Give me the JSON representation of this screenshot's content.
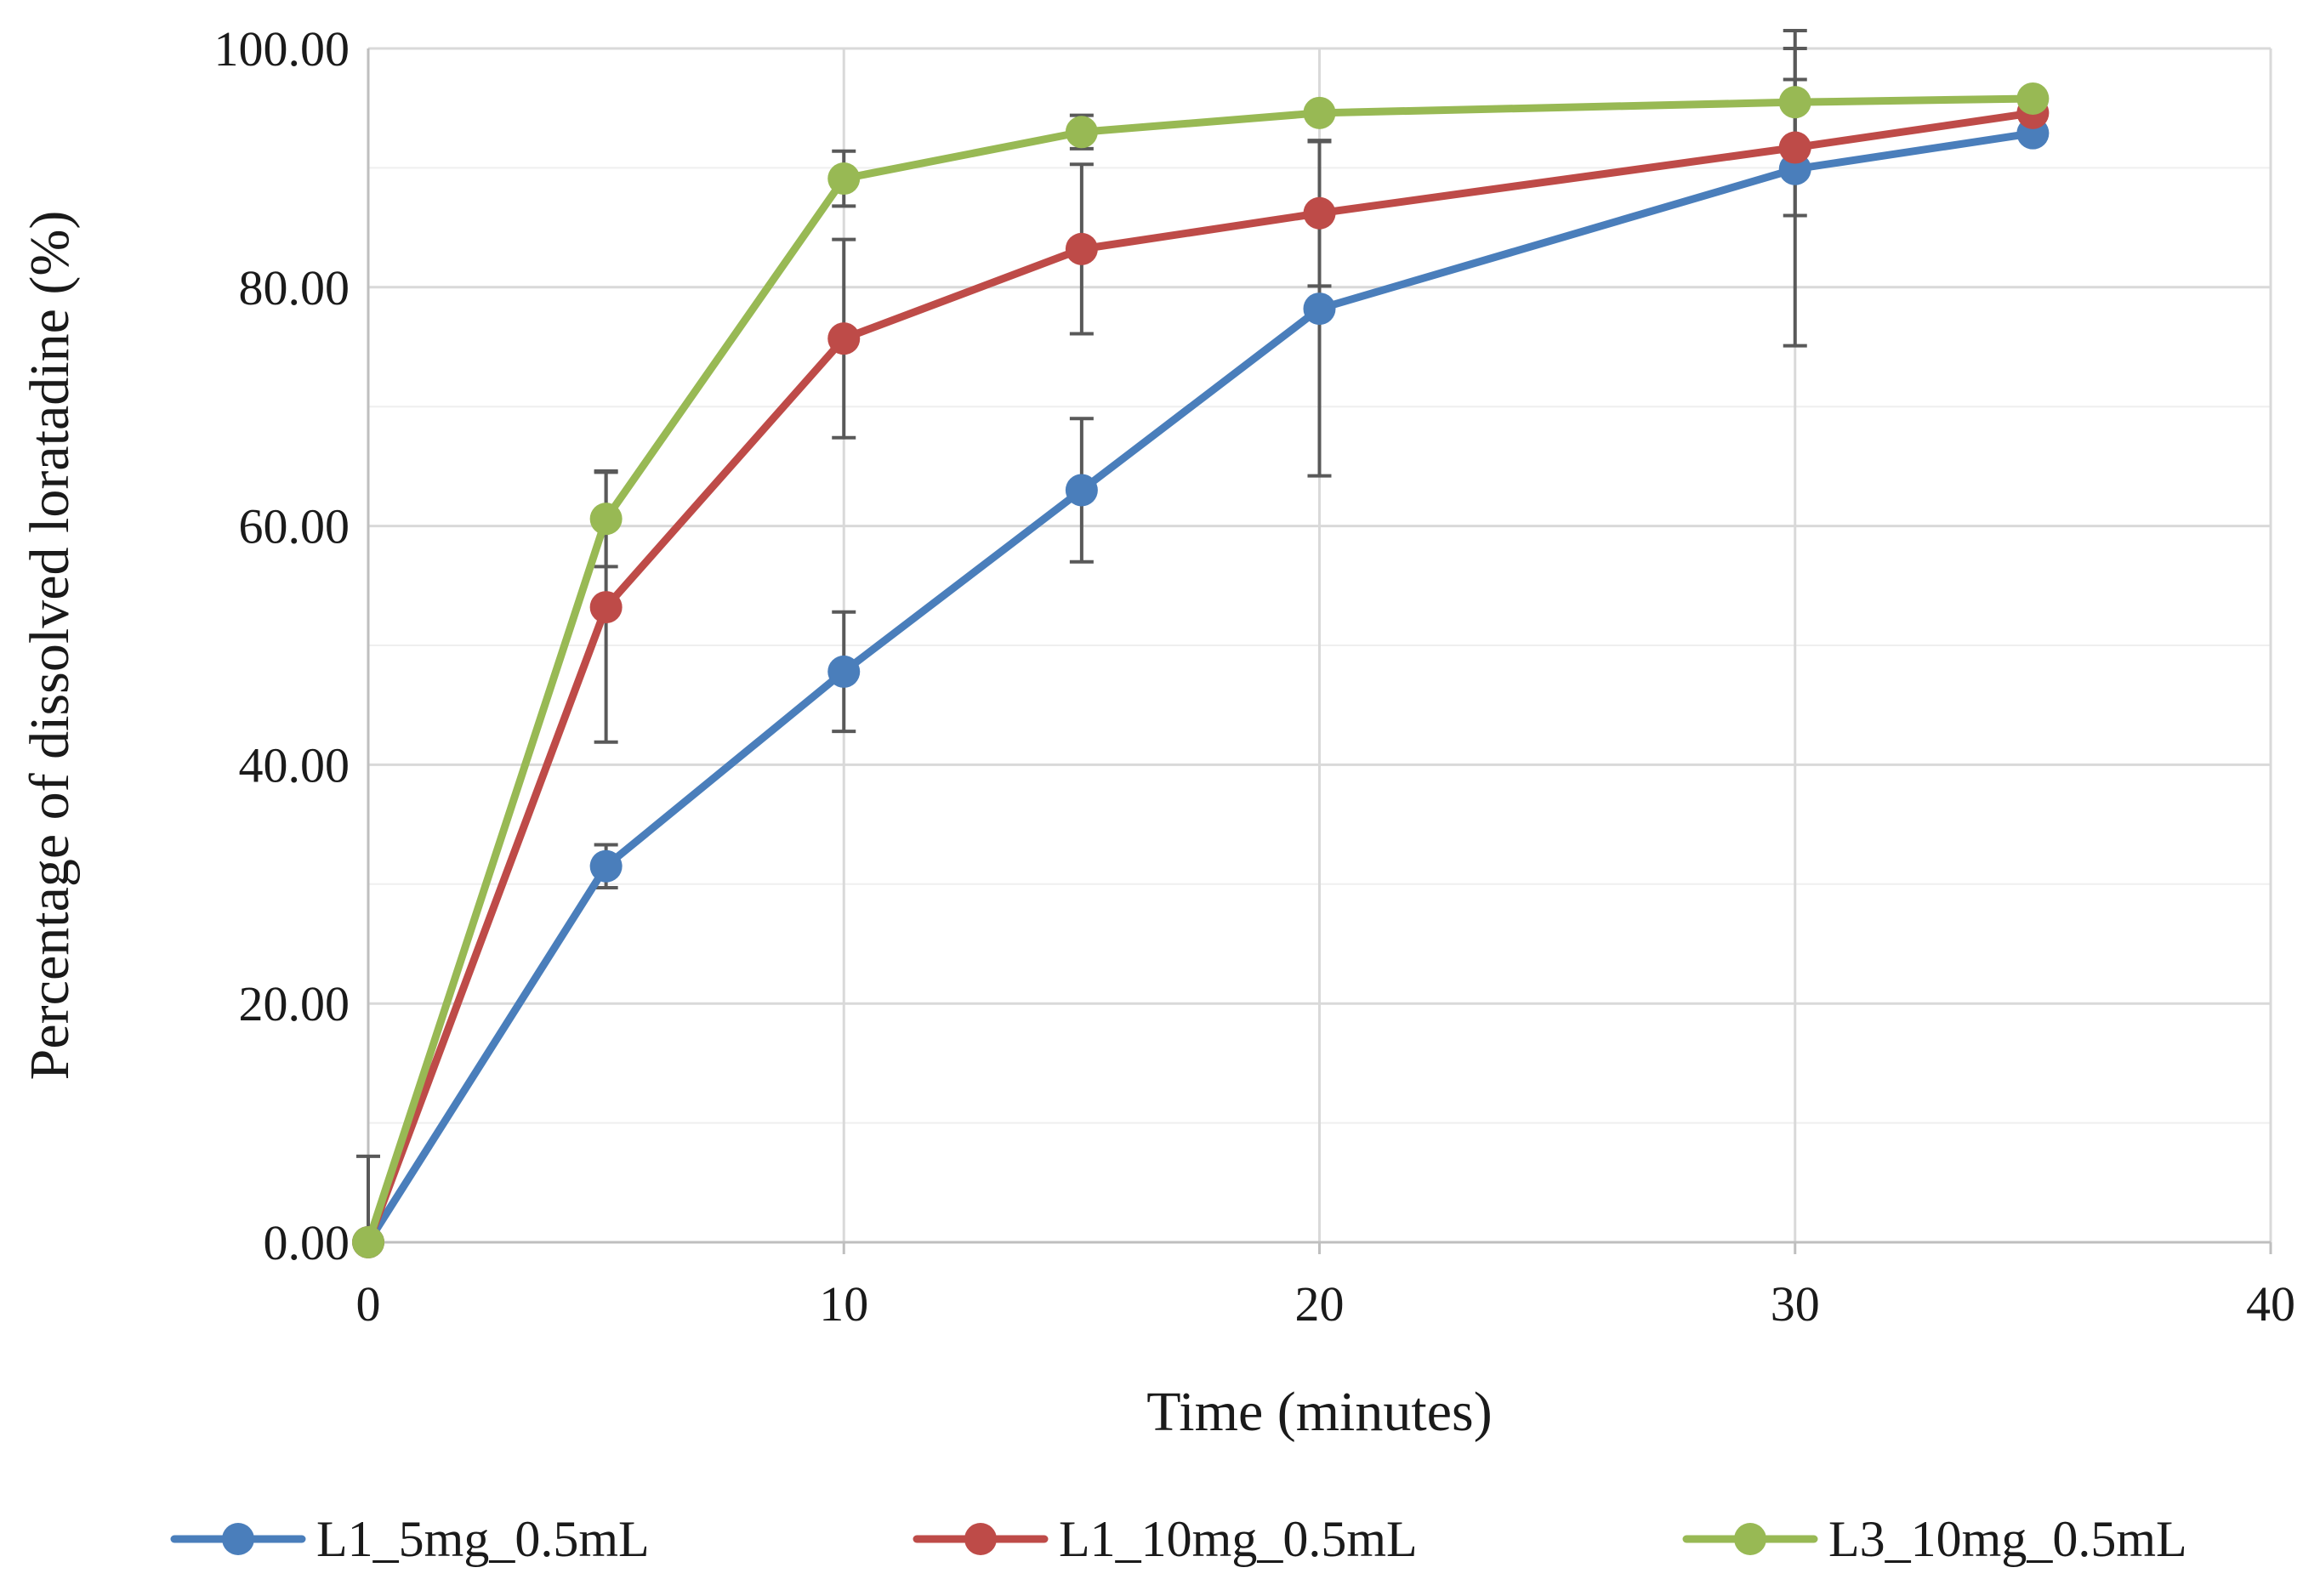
{
  "chart_data": {
    "type": "line",
    "title": "",
    "xlabel": "Time (minutes)",
    "ylabel": "Percentage of dissolved loratadine (%)",
    "xlim": [
      0,
      40
    ],
    "ylim": [
      0,
      100
    ],
    "x_ticks": [
      0,
      10,
      20,
      30,
      40
    ],
    "x_tick_labels": [
      "0",
      "10",
      "20",
      "30",
      "40"
    ],
    "y_ticks": [
      0,
      20,
      40,
      60,
      80,
      100
    ],
    "y_tick_labels": [
      "0.00",
      "20.00",
      "40.00",
      "60.00",
      "80.00",
      "100.00"
    ],
    "grid": true,
    "legend_position": "bottom",
    "series": [
      {
        "name": "L1_5mg_0.5mL",
        "color": "#4a7ebb",
        "x": [
          0,
          5,
          10,
          15,
          20,
          30,
          35
        ],
        "values": [
          0,
          31.5,
          47.8,
          63.0,
          78.2,
          89.9,
          92.9
        ],
        "error": [
          0,
          1.8,
          5.0,
          6.0,
          14.0,
          14.8,
          0
        ]
      },
      {
        "name": "L1_10mg_0.5mL",
        "color": "#be4b48",
        "x": [
          0,
          5,
          10,
          15,
          20,
          30,
          35
        ],
        "values": [
          0,
          53.2,
          75.7,
          83.2,
          86.2,
          91.7,
          94.6
        ],
        "error": [
          0,
          11.3,
          8.3,
          7.1,
          6.1,
          5.7,
          0
        ]
      },
      {
        "name": "L3_10mg_0.5mL",
        "color": "#98b954",
        "x": [
          0,
          5,
          10,
          15,
          20,
          30,
          35
        ],
        "values": [
          0,
          60.6,
          89.1,
          93.0,
          94.6,
          95.5,
          95.8
        ],
        "error": [
          7.2,
          4.0,
          2.3,
          1.4,
          0,
          4.5,
          0
        ]
      }
    ]
  }
}
